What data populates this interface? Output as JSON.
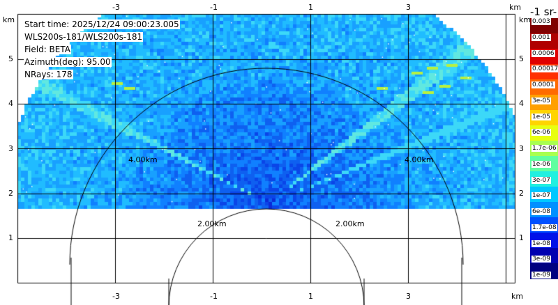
{
  "info": {
    "start_time": "Start time: 2025/12/24 09:00:23.005",
    "device": "WLS200s-181/WLS200s-181",
    "field": "Field: BETA",
    "azimuth": "Azimuth(deg): 95.00",
    "nrays": "NRays: 178"
  },
  "axes": {
    "unit": "km",
    "x_ticks": [
      "-3",
      "-1",
      "1",
      "3"
    ],
    "y_ticks": [
      "1",
      "2",
      "3",
      "4",
      "5"
    ]
  },
  "range_rings": {
    "ring_2km": "2.00km",
    "ring_4km": "4.00km"
  },
  "colorbar": {
    "title": "-1 sr-",
    "labels": [
      "0.003",
      "0.001",
      "0.0006",
      "0.00017",
      "0.0001",
      "3e-05",
      "1e-05",
      "6e-06",
      "1.7e-06",
      "1e-06",
      "3e-07",
      "1e-07",
      "6e-08",
      "1.7e-08",
      "1e-08",
      "3e-09",
      "1e-09"
    ],
    "colors": [
      "#800000",
      "#b00000",
      "#e00000",
      "#ff3000",
      "#ff6a00",
      "#ffa000",
      "#ffd400",
      "#e8ff10",
      "#a8ff50",
      "#60ffa0",
      "#20f0e0",
      "#00c8ff",
      "#0090ff",
      "#0050ff",
      "#0010e8",
      "#0000b0",
      "#000080"
    ]
  }
}
